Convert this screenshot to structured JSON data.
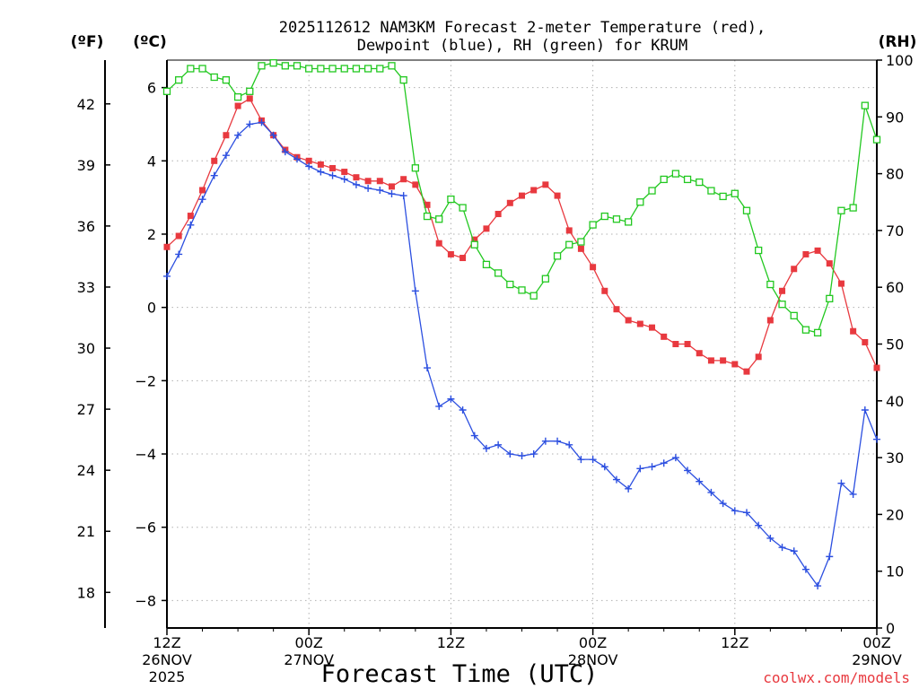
{
  "chart_data": {
    "type": "line",
    "title_line1": "2025112612 NAM3KM Forecast 2-meter Temperature (red),",
    "title_line2": "Dewpoint (blue), RH (green) for KRUM",
    "xlabel": "Forecast Time (UTC)",
    "credit": "coolwx.com/models",
    "axis_labels": {
      "fahrenheit": "(ºF)",
      "celsius": "(ºC)",
      "rh": "(RH)"
    },
    "x_ticks": [
      {
        "hour": 0,
        "line1": "12Z",
        "line2": "26NOV",
        "line3": "2025"
      },
      {
        "hour": 12,
        "line1": "00Z",
        "line2": "27NOV",
        "line3": ""
      },
      {
        "hour": 24,
        "line1": "12Z",
        "line2": "",
        "line3": ""
      },
      {
        "hour": 36,
        "line1": "00Z",
        "line2": "28NOV",
        "line3": ""
      },
      {
        "hour": 48,
        "line1": "12Z",
        "line2": "",
        "line3": ""
      },
      {
        "hour": 60,
        "line1": "00Z",
        "line2": "29NOV",
        "line3": ""
      }
    ],
    "x_range": [
      0,
      60
    ],
    "celsius_range": [
      -8.75,
      6.75
    ],
    "rh_range": [
      0,
      100
    ],
    "celsius_ticks": [
      {
        "v": 6,
        "label": "6"
      },
      {
        "v": 4,
        "label": "4"
      },
      {
        "v": 2,
        "label": "2"
      },
      {
        "v": 0,
        "label": "0"
      },
      {
        "v": -2,
        "label": "−2"
      },
      {
        "v": -4,
        "label": "−4"
      },
      {
        "v": -6,
        "label": "−6"
      },
      {
        "v": -8,
        "label": "−8"
      }
    ],
    "fahrenheit_ticks": [
      {
        "v": 42,
        "label": "42"
      },
      {
        "v": 39,
        "label": "39"
      },
      {
        "v": 36,
        "label": "36"
      },
      {
        "v": 33,
        "label": "33"
      },
      {
        "v": 30,
        "label": "30"
      },
      {
        "v": 27,
        "label": "27"
      },
      {
        "v": 24,
        "label": "24"
      },
      {
        "v": 21,
        "label": "21"
      },
      {
        "v": 18,
        "label": "18"
      }
    ],
    "rh_ticks": [
      {
        "v": 100,
        "label": "100"
      },
      {
        "v": 90,
        "label": "90"
      },
      {
        "v": 80,
        "label": "80"
      },
      {
        "v": 70,
        "label": "70"
      },
      {
        "v": 60,
        "label": "60"
      },
      {
        "v": 50,
        "label": "50"
      },
      {
        "v": 40,
        "label": "40"
      },
      {
        "v": 30,
        "label": "30"
      },
      {
        "v": 20,
        "label": "20"
      },
      {
        "v": 10,
        "label": "10"
      },
      {
        "v": 0,
        "label": "0"
      }
    ],
    "series": [
      {
        "name": "Temperature (red)",
        "unit": "C",
        "color": "#e8393f",
        "marker": "filled-square",
        "x": [
          0,
          1,
          2,
          3,
          4,
          5,
          6,
          7,
          8,
          9,
          10,
          11,
          12,
          13,
          14,
          15,
          16,
          17,
          18,
          19,
          20,
          21,
          22,
          23,
          24,
          25,
          26,
          27,
          28,
          29,
          30,
          31,
          32,
          33,
          34,
          35,
          36,
          37,
          38,
          39,
          40,
          41,
          42,
          43,
          44,
          45,
          46,
          47,
          48,
          49,
          50,
          51,
          52,
          53,
          54,
          55,
          56,
          57,
          58,
          59,
          60
        ],
        "values": [
          1.65,
          1.95,
          2.5,
          3.2,
          4.0,
          4.7,
          5.5,
          5.7,
          5.1,
          4.7,
          4.3,
          4.1,
          4.0,
          3.9,
          3.8,
          3.7,
          3.55,
          3.45,
          3.45,
          3.3,
          3.5,
          3.35,
          2.8,
          1.75,
          1.45,
          1.35,
          1.85,
          2.15,
          2.55,
          2.85,
          3.05,
          3.2,
          3.35,
          3.05,
          2.1,
          1.6,
          1.1,
          0.45,
          -0.05,
          -0.35,
          -0.45,
          -0.55,
          -0.8,
          -1.0,
          -1.0,
          -1.25,
          -1.45,
          -1.45,
          -1.55,
          -1.75,
          -1.35,
          -0.35,
          0.45,
          1.05,
          1.45,
          1.55,
          1.2,
          0.65,
          -0.65,
          -0.95,
          -1.65
        ]
      },
      {
        "name": "Dewpoint (blue)",
        "unit": "C",
        "color": "#2c4fe0",
        "marker": "plus",
        "x": [
          0,
          1,
          2,
          3,
          4,
          5,
          6,
          7,
          8,
          9,
          10,
          11,
          12,
          13,
          14,
          15,
          16,
          17,
          18,
          19,
          20,
          21,
          22,
          23,
          24,
          25,
          26,
          27,
          28,
          29,
          30,
          31,
          32,
          33,
          34,
          35,
          36,
          37,
          38,
          39,
          40,
          41,
          42,
          43,
          44,
          45,
          46,
          47,
          48,
          49,
          50,
          51,
          52,
          53,
          54,
          55,
          56,
          57,
          58,
          59,
          60
        ],
        "values": [
          0.85,
          1.45,
          2.25,
          2.95,
          3.6,
          4.15,
          4.7,
          5.0,
          5.05,
          4.7,
          4.25,
          4.05,
          3.85,
          3.7,
          3.6,
          3.5,
          3.35,
          3.25,
          3.2,
          3.1,
          3.05,
          0.45,
          -1.65,
          -2.7,
          -2.5,
          -2.8,
          -3.5,
          -3.85,
          -3.75,
          -4.0,
          -4.05,
          -4.0,
          -3.65,
          -3.65,
          -3.75,
          -4.15,
          -4.15,
          -4.35,
          -4.7,
          -4.95,
          -4.4,
          -4.35,
          -4.25,
          -4.1,
          -4.45,
          -4.75,
          -5.05,
          -5.35,
          -5.55,
          -5.6,
          -5.95,
          -6.3,
          -6.55,
          -6.65,
          -7.15,
          -7.6,
          -6.8,
          -4.8,
          -5.1,
          -2.8,
          -3.6
        ]
      },
      {
        "name": "RH (green)",
        "unit": "%",
        "color": "#22c820",
        "marker": "hollow-square",
        "x": [
          0,
          1,
          2,
          3,
          4,
          5,
          6,
          7,
          8,
          9,
          10,
          11,
          12,
          13,
          14,
          15,
          16,
          17,
          18,
          19,
          20,
          21,
          22,
          23,
          24,
          25,
          26,
          27,
          28,
          29,
          30,
          31,
          32,
          33,
          34,
          35,
          36,
          37,
          38,
          39,
          40,
          41,
          42,
          43,
          44,
          45,
          46,
          47,
          48,
          49,
          50,
          51,
          52,
          53,
          54,
          55,
          56,
          57,
          58,
          59,
          60
        ],
        "values": [
          94.5,
          96.5,
          98.5,
          98.5,
          97,
          96.5,
          93.5,
          94.5,
          99,
          99.5,
          99,
          99,
          98.5,
          98.5,
          98.5,
          98.5,
          98.5,
          98.5,
          98.5,
          99,
          96.5,
          81,
          72.5,
          72,
          75.5,
          74,
          67.5,
          64,
          62.5,
          60.5,
          59.5,
          58.5,
          61.5,
          65.5,
          67.5,
          68,
          71,
          72.5,
          72,
          71.5,
          75,
          77,
          79,
          80,
          79,
          78.5,
          77,
          76,
          76.5,
          73.5,
          66.5,
          60.5,
          57,
          55,
          52.5,
          52,
          58,
          73.5,
          74,
          92,
          86
        ]
      }
    ]
  }
}
